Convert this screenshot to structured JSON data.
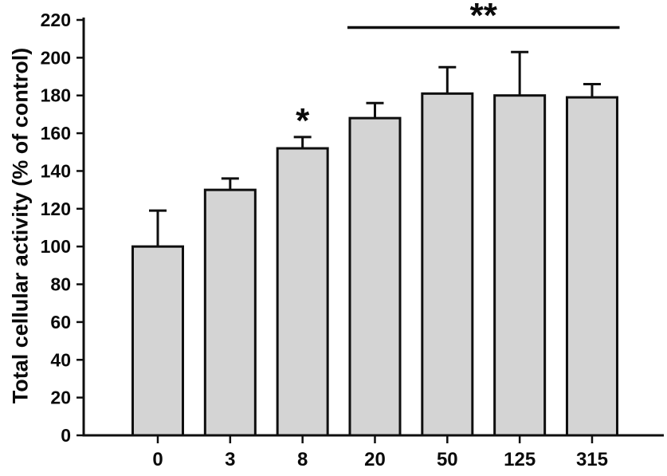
{
  "figure": {
    "background": "#ffffff",
    "text_color": "#0a0a0a"
  },
  "chart_data": {
    "type": "bar",
    "title": "",
    "xlabel": "",
    "ylabel": "Total cellular activity (% of control)",
    "categories": [
      "0",
      "3",
      "8",
      "20",
      "50",
      "125",
      "315"
    ],
    "series": [
      {
        "name": "Total cellular activity (% of control)",
        "values": [
          100,
          130,
          152,
          168,
          181,
          180,
          179
        ],
        "errors_plus": [
          19,
          6,
          6,
          8,
          14,
          23,
          7
        ]
      }
    ],
    "ylim": [
      0,
      220
    ],
    "ytick_step": 20,
    "yticks": [
      0,
      20,
      40,
      60,
      80,
      100,
      120,
      140,
      160,
      180,
      200,
      220
    ],
    "grid": false,
    "legend": "none",
    "bar_fill": "#d4d4d4",
    "bar_stroke": "#0f0f0f",
    "axis_color": "#0f0f0f",
    "annotations": [
      {
        "type": "asterisk",
        "text": "*",
        "category": "8"
      },
      {
        "type": "bracket",
        "text": "**",
        "from_category": "20",
        "to_category": "315"
      }
    ]
  }
}
